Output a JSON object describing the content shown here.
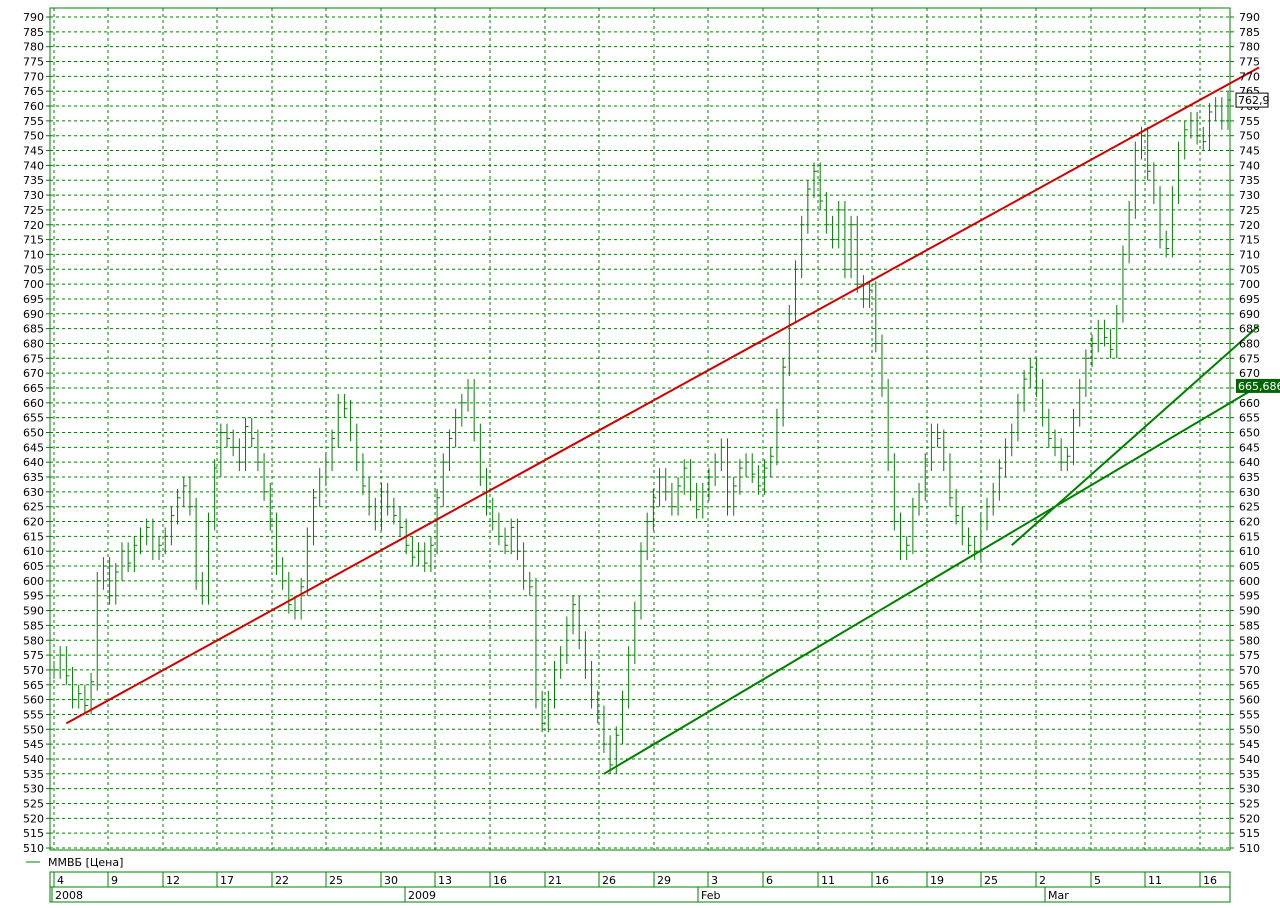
{
  "chart_data": {
    "type": "line",
    "title": "",
    "xlabel": "",
    "ylabel": "",
    "ylim": [
      510,
      790
    ],
    "y_tick_step": 5,
    "grid": true,
    "legend": {
      "position": "bottom-left",
      "label": "ММВБ [Цена]"
    },
    "x_ticks": [
      "4",
      "9",
      "12",
      "17",
      "22",
      "25",
      "30",
      "13",
      "16",
      "21",
      "26",
      "29",
      "3",
      "6",
      "11",
      "16",
      "19",
      "25",
      "2",
      "5",
      "11",
      "16"
    ],
    "x_period_labels": [
      "2008",
      "2009",
      "Feb",
      "Mar"
    ],
    "current_price_label": "762,9",
    "trendline_value_label": "665,686",
    "colors": {
      "price": "#008000",
      "grid": "#008000",
      "resistance_line": "#d00000",
      "support_lines": "#008000",
      "badge_price_bg": "#ffffff",
      "badge_trend_bg": "#006400"
    },
    "series": [
      {
        "name": "ММВБ [Цена]",
        "values": [
          570,
          575,
          568,
          560,
          562,
          558,
          566,
          600,
          605,
          595,
          603,
          610,
          606,
          612,
          615,
          618,
          610,
          612,
          615,
          622,
          628,
          632,
          625,
          600,
          595,
          620,
          638,
          650,
          648,
          645,
          640,
          652,
          648,
          640,
          630,
          620,
          605,
          600,
          592,
          590,
          598,
          615,
          628,
          635,
          640,
          648,
          660,
          658,
          650,
          640,
          632,
          625,
          620,
          630,
          625,
          622,
          618,
          612,
          608,
          610,
          606,
          612,
          628,
          640,
          648,
          655,
          660,
          665,
          650,
          635,
          625,
          620,
          615,
          612,
          618,
          610,
          600,
          598,
          560,
          552,
          560,
          570,
          575,
          585,
          592,
          580,
          570,
          560,
          555,
          545,
          538,
          548,
          560,
          575,
          590,
          610,
          620,
          628,
          635,
          630,
          625,
          632,
          638,
          630,
          624,
          630,
          635,
          640,
          645,
          625,
          632,
          638,
          640,
          636,
          632,
          638,
          642,
          655,
          672,
          690,
          705,
          720,
          732,
          738,
          728,
          720,
          715,
          725,
          705,
          720,
          700,
          695,
          698,
          680,
          665,
          640,
          620,
          610,
          612,
          625,
          630,
          640,
          650,
          648,
          640,
          628,
          622,
          615,
          612,
          610,
          620,
          625,
          630,
          638,
          645,
          650,
          660,
          668,
          672,
          665,
          655,
          648,
          645,
          640,
          642,
          655,
          665,
          675,
          680,
          685,
          682,
          678,
          690,
          710,
          725,
          745,
          750,
          738,
          730,
          715,
          712,
          730,
          745,
          752,
          755,
          750,
          748,
          758,
          760,
          755,
          762
        ]
      }
    ],
    "trendlines": [
      {
        "name": "resistance",
        "color": "#d00000",
        "from": [
          2,
          552
        ],
        "to": [
          195,
          773
        ]
      },
      {
        "name": "support-main",
        "color": "#008000",
        "from": [
          89,
          535
        ],
        "to": [
          195,
          665.7
        ]
      },
      {
        "name": "support-steep",
        "color": "#008000",
        "from": [
          155,
          612
        ],
        "to": [
          195,
          686
        ]
      }
    ]
  }
}
